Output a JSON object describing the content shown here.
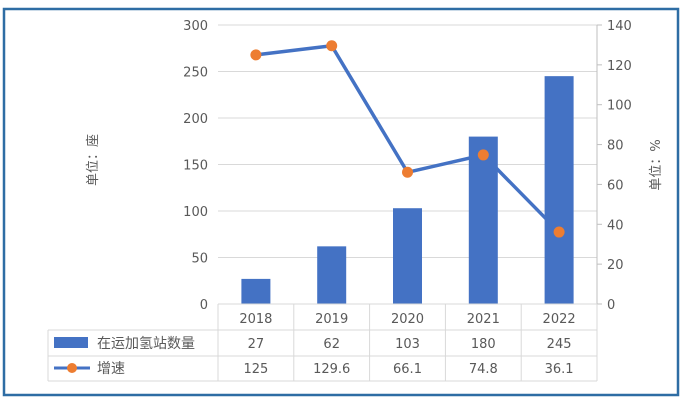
{
  "chart_data": {
    "type": "bar+line",
    "categories": [
      "2018",
      "2019",
      "2020",
      "2021",
      "2022"
    ],
    "series": [
      {
        "name": "在运加氢站数量",
        "type": "bar",
        "axis": "left",
        "values": [
          27,
          62,
          103,
          180,
          245
        ],
        "color": "#4472C4"
      },
      {
        "name": "增速",
        "type": "line",
        "axis": "right",
        "values": [
          125,
          129.6,
          66.1,
          74.8,
          36.1
        ],
        "color": "#4472C4",
        "marker_color": "#ED7D31"
      }
    ],
    "ylabel": "单位：座",
    "y2label": "单位：%",
    "ylim": [
      0,
      300
    ],
    "y2lim": [
      0,
      140
    ],
    "yticks": [
      0,
      50,
      100,
      150,
      200,
      250,
      300
    ],
    "y2ticks": [
      0,
      20,
      40,
      60,
      80,
      100,
      120,
      140
    ],
    "grid": true,
    "legend": "data-table",
    "frame_color": "#2E6DA4"
  }
}
